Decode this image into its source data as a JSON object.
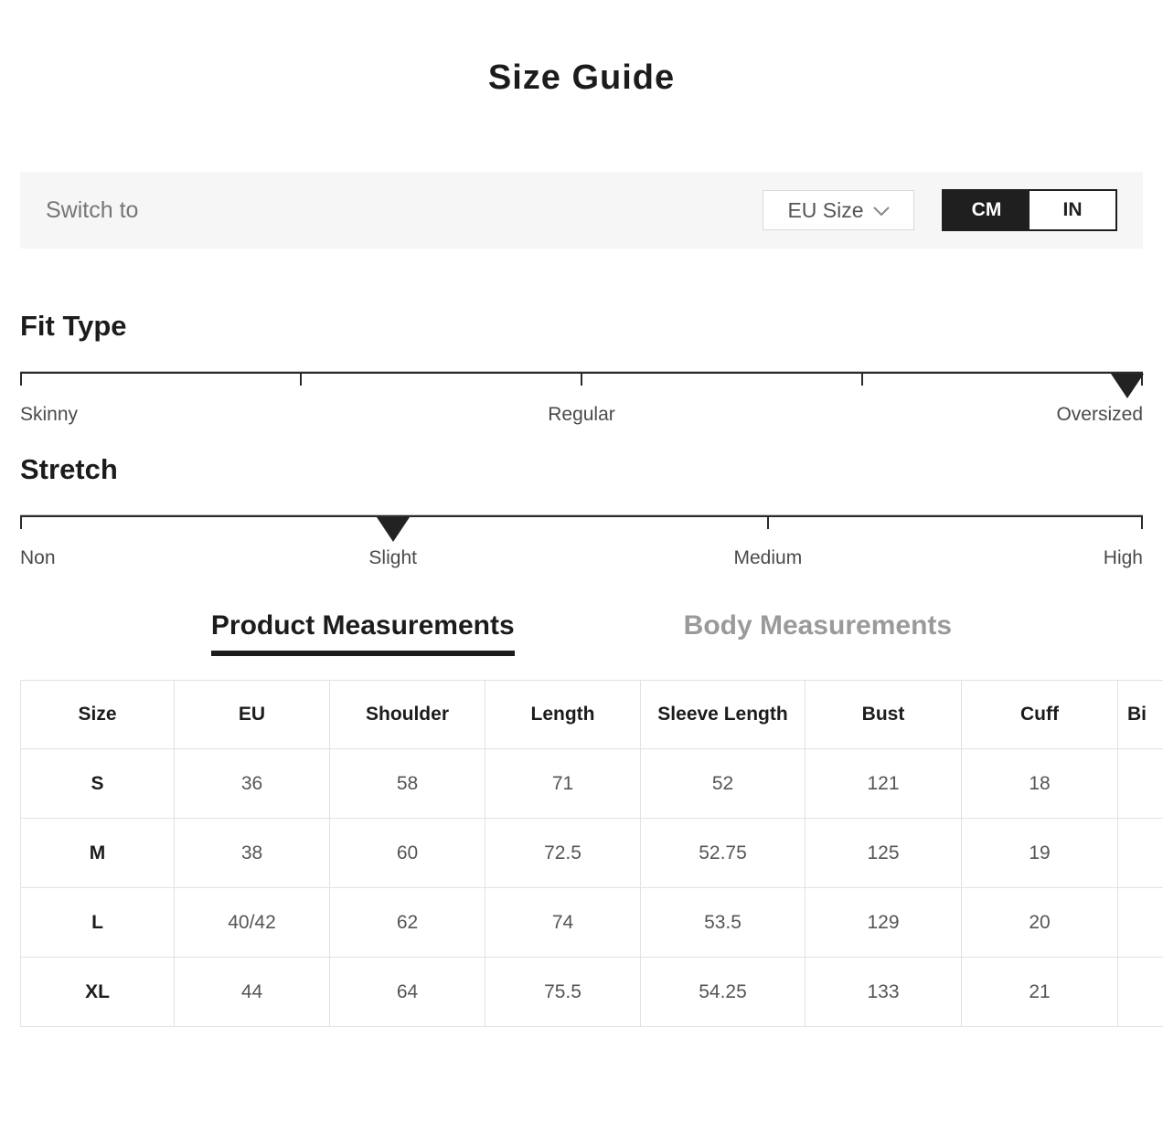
{
  "title": "Size Guide",
  "colors": {
    "accent_dark": "#1f1f1f",
    "bar_background": "#f6f6f6",
    "muted_text": "#767676",
    "slider_label_text": "#4a4a4a",
    "cell_text": "#555555",
    "inactive_tab": "#9a9a9a",
    "table_border": "#e2e2e2"
  },
  "unit_bar": {
    "switch_label": "Switch to",
    "size_system_dropdown": {
      "selected": "EU Size",
      "icon": "chevron-down-icon"
    },
    "unit_toggle": [
      {
        "label": "CM",
        "active": true
      },
      {
        "label": "IN",
        "active": false
      }
    ]
  },
  "sliders": [
    {
      "title": "Fit Type",
      "ticks_pct": [
        0,
        25,
        50,
        75,
        100
      ],
      "marker_pct": 98.6,
      "labels": [
        {
          "text": "Skinny",
          "pct": 0,
          "align": "left"
        },
        {
          "text": "Regular",
          "pct": 50,
          "align": "center"
        },
        {
          "text": "Oversized",
          "pct": 100,
          "align": "right"
        }
      ]
    },
    {
      "title": "Stretch",
      "ticks_pct": [
        0,
        33.2,
        66.6,
        100
      ],
      "marker_pct": 33.2,
      "labels": [
        {
          "text": "Non",
          "pct": 0,
          "align": "left"
        },
        {
          "text": "Slight",
          "pct": 33.2,
          "align": "center"
        },
        {
          "text": "Medium",
          "pct": 66.6,
          "align": "center"
        },
        {
          "text": "High",
          "pct": 100,
          "align": "right"
        }
      ]
    }
  ],
  "tabs": [
    {
      "label": "Product Measurements",
      "active": true
    },
    {
      "label": "Body Measurements",
      "active": false
    }
  ],
  "measurement_table": {
    "columns": [
      "Size",
      "EU",
      "Shoulder",
      "Length",
      "Sleeve Length",
      "Bust",
      "Cuff",
      "Bi"
    ],
    "rows": [
      {
        "size": "S",
        "values": [
          "36",
          "58",
          "71",
          "52",
          "121",
          "18",
          ""
        ]
      },
      {
        "size": "M",
        "values": [
          "38",
          "60",
          "72.5",
          "52.75",
          "125",
          "19",
          ""
        ]
      },
      {
        "size": "L",
        "values": [
          "40/42",
          "62",
          "74",
          "53.5",
          "129",
          "20",
          ""
        ]
      },
      {
        "size": "XL",
        "values": [
          "44",
          "64",
          "75.5",
          "54.25",
          "133",
          "21",
          ""
        ]
      }
    ]
  }
}
